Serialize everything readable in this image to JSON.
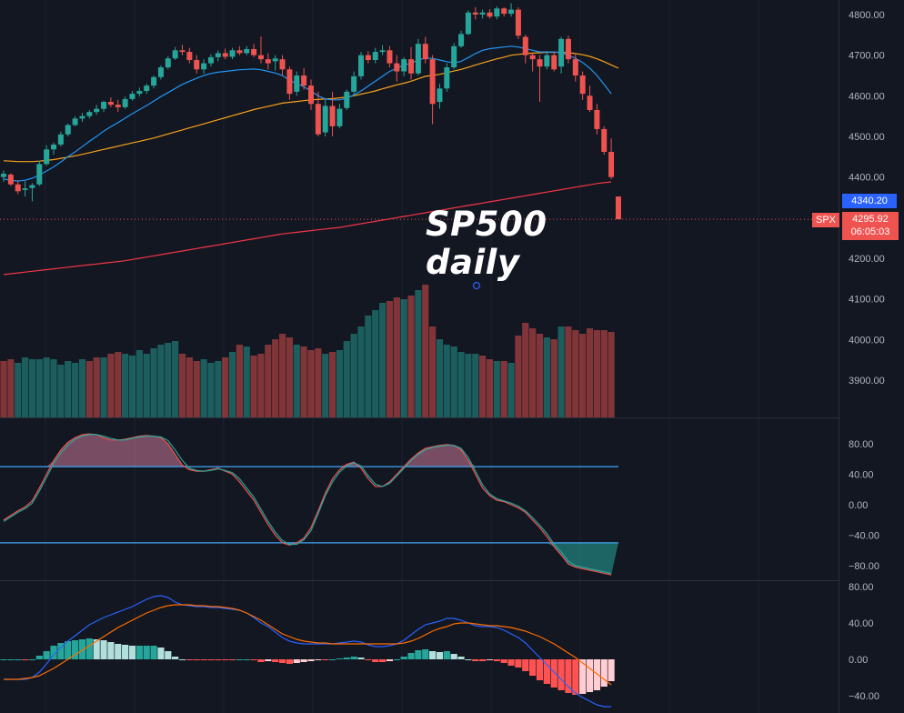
{
  "annotation": {
    "line1": "SP500",
    "line2": "daily"
  },
  "price_axis": {
    "ticks": [
      "4800.00",
      "4700.00",
      "4600.00",
      "4500.00",
      "4400.00",
      "4300.00",
      "4200.00",
      "4100.00",
      "4000.00",
      "3900.00"
    ]
  },
  "price_tags": {
    "ma_value": "4340.20",
    "symbol": "SPX",
    "last_price": "4295.92",
    "countdown": "06:05:03"
  },
  "stoch_axis": {
    "ticks": [
      "80.00",
      "40.00",
      "0.00",
      "−40.00",
      "−80.00"
    ],
    "levels": [
      50,
      -50
    ]
  },
  "macd_axis": {
    "ticks": [
      "80.00",
      "40.00",
      "0.00",
      "−40.00"
    ]
  },
  "colors": {
    "up": "#26a69a",
    "down": "#ef5350",
    "ma_fast": "#2196f3",
    "ma_mid": "#f7a21b",
    "ma_slow": "#f23645",
    "level_line": "#42a5f5"
  },
  "chart_data": [
    {
      "type": "candlestick",
      "title": "",
      "ylim": [
        4150,
        4830
      ],
      "ohlc": [
        [
          4400,
          4416,
          4388,
          4408
        ],
        [
          4406,
          4409,
          4378,
          4382
        ],
        [
          4382,
          4392,
          4358,
          4365
        ],
        [
          4368,
          4390,
          4352,
          4372
        ],
        [
          4373,
          4385,
          4340,
          4380
        ],
        [
          4382,
          4440,
          4378,
          4432
        ],
        [
          4432,
          4478,
          4428,
          4468
        ],
        [
          4468,
          4485,
          4455,
          4480
        ],
        [
          4480,
          4512,
          4475,
          4505
        ],
        [
          4505,
          4532,
          4500,
          4528
        ],
        [
          4528,
          4550,
          4525,
          4544
        ],
        [
          4544,
          4558,
          4536,
          4550
        ],
        [
          4550,
          4565,
          4544,
          4560
        ],
        [
          4560,
          4578,
          4553,
          4568
        ],
        [
          4568,
          4588,
          4560,
          4585
        ],
        [
          4585,
          4596,
          4572,
          4578
        ],
        [
          4578,
          4590,
          4560,
          4572
        ],
        [
          4572,
          4598,
          4568,
          4592
        ],
        [
          4592,
          4612,
          4588,
          4605
        ],
        [
          4605,
          4620,
          4598,
          4612
        ],
        [
          4612,
          4630,
          4605,
          4625
        ],
        [
          4625,
          4650,
          4618,
          4646
        ],
        [
          4646,
          4675,
          4640,
          4670
        ],
        [
          4670,
          4698,
          4665,
          4692
        ],
        [
          4692,
          4720,
          4688,
          4712
        ],
        [
          4712,
          4725,
          4700,
          4708
        ],
        [
          4708,
          4718,
          4680,
          4688
        ],
        [
          4688,
          4700,
          4655,
          4665
        ],
        [
          4665,
          4690,
          4655,
          4680
        ],
        [
          4680,
          4702,
          4672,
          4695
        ],
        [
          4695,
          4712,
          4685,
          4705
        ],
        [
          4705,
          4716,
          4690,
          4696
        ],
        [
          4696,
          4718,
          4690,
          4712
        ],
        [
          4712,
          4722,
          4700,
          4705
        ],
        [
          4705,
          4722,
          4700,
          4715
        ],
        [
          4715,
          4728,
          4695,
          4700
        ],
        [
          4700,
          4746,
          4680,
          4690
        ],
        [
          4690,
          4705,
          4665,
          4680
        ],
        [
          4685,
          4700,
          4662,
          4692
        ],
        [
          4690,
          4700,
          4650,
          4665
        ],
        [
          4665,
          4672,
          4590,
          4605
        ],
        [
          4610,
          4660,
          4600,
          4650
        ],
        [
          4650,
          4668,
          4615,
          4625
        ],
        [
          4625,
          4640,
          4565,
          4580
        ],
        [
          4580,
          4610,
          4500,
          4505
        ],
        [
          4510,
          4590,
          4500,
          4575
        ],
        [
          4575,
          4610,
          4500,
          4525
        ],
        [
          4525,
          4580,
          4520,
          4568
        ],
        [
          4570,
          4615,
          4565,
          4610
        ],
        [
          4610,
          4660,
          4600,
          4648
        ],
        [
          4648,
          4708,
          4640,
          4700
        ],
        [
          4700,
          4710,
          4680,
          4688
        ],
        [
          4688,
          4718,
          4680,
          4708
        ],
        [
          4708,
          4725,
          4700,
          4712
        ],
        [
          4712,
          4722,
          4670,
          4680
        ],
        [
          4680,
          4700,
          4635,
          4660
        ],
        [
          4660,
          4695,
          4648,
          4690
        ],
        [
          4690,
          4720,
          4640,
          4655
        ],
        [
          4655,
          4740,
          4650,
          4728
        ],
        [
          4728,
          4745,
          4680,
          4690
        ],
        [
          4690,
          4700,
          4530,
          4580
        ],
        [
          4585,
          4630,
          4568,
          4618
        ],
        [
          4618,
          4680,
          4610,
          4670
        ],
        [
          4670,
          4730,
          4665,
          4722
        ],
        [
          4722,
          4760,
          4718,
          4752
        ],
        [
          4752,
          4810,
          4750,
          4805
        ],
        [
          4805,
          4818,
          4788,
          4800
        ],
        [
          4800,
          4812,
          4790,
          4805
        ],
        [
          4805,
          4813,
          4790,
          4795
        ],
        [
          4795,
          4820,
          4788,
          4815
        ],
        [
          4815,
          4818,
          4795,
          4802
        ],
        [
          4802,
          4828,
          4795,
          4812
        ],
        [
          4812,
          4818,
          4740,
          4748
        ],
        [
          4745,
          4750,
          4680,
          4700
        ],
        [
          4700,
          4705,
          4660,
          4690
        ],
        [
          4690,
          4700,
          4585,
          4672
        ],
        [
          4672,
          4710,
          4665,
          4700
        ],
        [
          4700,
          4708,
          4660,
          4665
        ],
        [
          4672,
          4745,
          4655,
          4740
        ],
        [
          4740,
          4748,
          4680,
          4690
        ],
        [
          4690,
          4705,
          4635,
          4650
        ],
        [
          4650,
          4660,
          4590,
          4605
        ],
        [
          4600,
          4625,
          4560,
          4565
        ],
        [
          4565,
          4580,
          4505,
          4518
        ],
        [
          4518,
          4525,
          4455,
          4462
        ],
        [
          4462,
          4495,
          4395,
          4400
        ],
        [
          4352,
          4352,
          4296,
          4296
        ]
      ],
      "ma_fast": [
        4395,
        4392,
        4390,
        4392,
        4397,
        4405,
        4415,
        4425,
        4437,
        4450,
        4462,
        4475,
        4488,
        4500,
        4513,
        4524,
        4534,
        4545,
        4556,
        4566,
        4576,
        4587,
        4598,
        4608,
        4618,
        4628,
        4636,
        4643,
        4650,
        4655,
        4658,
        4660,
        4662,
        4664,
        4665,
        4666,
        4664,
        4660,
        4656,
        4650,
        4638,
        4630,
        4622,
        4612,
        4600,
        4592,
        4590,
        4590,
        4594,
        4602,
        4612,
        4624,
        4636,
        4648,
        4660,
        4668,
        4676,
        4680,
        4688,
        4693,
        4692,
        4688,
        4684,
        4681,
        4685,
        4694,
        4704,
        4712,
        4716,
        4718,
        4720,
        4722,
        4720,
        4716,
        4712,
        4708,
        4708,
        4708,
        4706,
        4700,
        4692,
        4682,
        4668,
        4650,
        4628,
        4605
      ],
      "ma_mid": [
        4440,
        4439,
        4438,
        4438,
        4438,
        4439,
        4441,
        4443,
        4446,
        4449,
        4452,
        4456,
        4460,
        4464,
        4468,
        4472,
        4476,
        4480,
        4484,
        4488,
        4492,
        4496,
        4501,
        4506,
        4511,
        4516,
        4521,
        4526,
        4531,
        4536,
        4541,
        4546,
        4551,
        4556,
        4561,
        4566,
        4570,
        4574,
        4578,
        4582,
        4584,
        4586,
        4588,
        4590,
        4591,
        4592,
        4593,
        4595,
        4597,
        4600,
        4604,
        4608,
        4612,
        4617,
        4622,
        4627,
        4631,
        4636,
        4642,
        4648,
        4650,
        4653,
        4657,
        4661,
        4665,
        4670,
        4676,
        4681,
        4686,
        4691,
        4695,
        4700,
        4702,
        4704,
        4705,
        4706,
        4707,
        4707,
        4707,
        4706,
        4704,
        4701,
        4697,
        4691,
        4684,
        4676,
        4668
      ],
      "ma_slow": [
        4160,
        4162,
        4164,
        4166,
        4168,
        4170,
        4172,
        4174,
        4176,
        4178,
        4180,
        4182,
        4184,
        4186,
        4188,
        4190,
        4192,
        4194,
        4197,
        4200,
        4203,
        4206,
        4209,
        4212,
        4215,
        4218,
        4221,
        4224,
        4227,
        4230,
        4233,
        4236,
        4239,
        4242,
        4245,
        4248,
        4251,
        4254,
        4257,
        4260,
        4262,
        4264,
        4266,
        4268,
        4270,
        4272,
        4274,
        4276,
        4279,
        4282,
        4285,
        4288,
        4291,
        4294,
        4297,
        4300,
        4303,
        4306,
        4309,
        4312,
        4315,
        4318,
        4321,
        4324,
        4327,
        4330,
        4333,
        4336,
        4339,
        4342,
        4345,
        4348,
        4351,
        4354,
        4357,
        4360,
        4363,
        4366,
        4369,
        4372,
        4375,
        4378,
        4381,
        4384,
        4386,
        4388
      ],
      "last_close": 4295.92
    },
    {
      "type": "bar",
      "title": "",
      "series_name": "volume",
      "values": [
        62,
        64,
        60,
        66,
        64,
        64,
        66,
        64,
        58,
        62,
        60,
        64,
        62,
        66,
        66,
        70,
        72,
        70,
        68,
        74,
        70,
        76,
        80,
        82,
        84,
        70,
        66,
        62,
        64,
        60,
        62,
        66,
        72,
        80,
        78,
        68,
        70,
        80,
        86,
        92,
        88,
        80,
        78,
        74,
        76,
        70,
        72,
        74,
        84,
        92,
        100,
        112,
        118,
        126,
        128,
        132,
        130,
        134,
        140,
        146,
        100,
        86,
        80,
        78,
        72,
        70,
        70,
        68,
        64,
        62,
        62,
        60,
        90,
        104,
        98,
        92,
        88,
        86,
        100,
        100,
        96,
        92,
        98,
        96,
        96,
        94
      ],
      "directions": [
        0,
        0,
        1,
        1,
        1,
        1,
        1,
        1,
        1,
        1,
        1,
        1,
        0,
        0,
        1,
        0,
        0,
        1,
        1,
        1,
        1,
        1,
        1,
        1,
        1,
        0,
        0,
        0,
        1,
        1,
        1,
        0,
        1,
        0,
        1,
        0,
        0,
        0,
        0,
        0,
        0,
        1,
        0,
        0,
        0,
        1,
        0,
        1,
        1,
        1,
        1,
        1,
        1,
        1,
        0,
        0,
        1,
        0,
        1,
        0,
        0,
        1,
        1,
        1,
        1,
        1,
        1,
        0,
        0,
        1,
        0,
        1,
        0,
        0,
        0,
        0,
        1,
        0,
        1,
        0,
        0,
        0,
        0,
        0,
        0,
        0
      ],
      "ylim": [
        0,
        160
      ]
    },
    {
      "type": "line",
      "title": "",
      "series_name": "stochastic",
      "ylim": [
        -100,
        100
      ],
      "k": [
        -20,
        -14,
        -8,
        -3,
        5,
        22,
        40,
        58,
        72,
        82,
        88,
        92,
        93,
        92,
        88,
        85,
        85,
        86,
        88,
        90,
        91,
        90,
        88,
        80,
        66,
        52,
        46,
        44,
        44,
        46,
        48,
        44,
        40,
        30,
        18,
        6,
        -10,
        -26,
        -40,
        -50,
        -53,
        -50,
        -44,
        -30,
        -8,
        15,
        34,
        46,
        53,
        56,
        48,
        34,
        24,
        24,
        30,
        40,
        50,
        60,
        68,
        74,
        76,
        78,
        79,
        78,
        72,
        58,
        40,
        22,
        12,
        6,
        4,
        0,
        -4,
        -10,
        -20,
        -30,
        -42,
        -55,
        -66,
        -78,
        -82,
        -84,
        -86,
        -88,
        -90,
        -92
      ],
      "d": [
        -22,
        -16,
        -10,
        -5,
        2,
        18,
        36,
        54,
        68,
        78,
        86,
        90,
        92,
        92,
        90,
        87,
        85,
        85,
        87,
        89,
        90,
        90,
        89,
        84,
        72,
        58,
        48,
        45,
        44,
        45,
        47,
        45,
        42,
        34,
        22,
        10,
        -6,
        -22,
        -36,
        -47,
        -52,
        -52,
        -46,
        -34,
        -12,
        12,
        30,
        43,
        51,
        55,
        51,
        38,
        27,
        24,
        28,
        38,
        48,
        58,
        66,
        72,
        75,
        77,
        78,
        78,
        74,
        62,
        44,
        26,
        14,
        8,
        5,
        2,
        -2,
        -8,
        -17,
        -27,
        -38,
        -52,
        -62,
        -74,
        -80,
        -82,
        -84,
        -86,
        -88,
        -90
      ]
    },
    {
      "type": "line",
      "title": "",
      "series_name": "macd",
      "ylim": [
        -50,
        82
      ],
      "macd": [
        -22,
        -22,
        -22,
        -22,
        -20,
        -14,
        -5,
        5,
        13,
        20,
        26,
        32,
        38,
        42,
        46,
        49,
        52,
        55,
        58,
        62,
        66,
        69,
        70,
        68,
        63,
        60,
        59,
        58,
        58,
        57,
        57,
        56,
        55,
        54,
        51,
        46,
        40,
        36,
        30,
        24,
        20,
        18,
        17,
        17,
        17,
        17,
        17,
        18,
        19,
        20,
        19,
        16,
        14,
        14,
        15,
        17,
        21,
        27,
        33,
        38,
        40,
        42,
        45,
        45,
        43,
        40,
        37,
        36,
        36,
        35,
        32,
        28,
        24,
        18,
        10,
        2,
        -6,
        -14,
        -22,
        -30,
        -37,
        -42,
        -46,
        -50,
        -52,
        -52
      ],
      "signal": [
        -22,
        -22,
        -22,
        -21,
        -20,
        -18,
        -14,
        -10,
        -5,
        0,
        5,
        10,
        15,
        20,
        25,
        30,
        35,
        39,
        43,
        47,
        51,
        54,
        57,
        59,
        60,
        60,
        60,
        59,
        59,
        58,
        58,
        57,
        56,
        54,
        51,
        47,
        43,
        38,
        33,
        28,
        25,
        22,
        20,
        19,
        18,
        18,
        17,
        17,
        17,
        17,
        17,
        17,
        17,
        17,
        17,
        17,
        18,
        20,
        23,
        27,
        31,
        34,
        36,
        39,
        40,
        40,
        39,
        38,
        37,
        37,
        36,
        35,
        33,
        31,
        28,
        25,
        21,
        17,
        12,
        7,
        2,
        -4,
        -10,
        -16,
        -22,
        -28
      ],
      "histogram": [
        0,
        0,
        0,
        -1,
        0,
        4,
        9,
        15,
        18,
        20,
        21,
        22,
        23,
        22,
        21,
        19,
        17,
        16,
        15,
        15,
        15,
        15,
        13,
        9,
        3,
        0,
        -1,
        -1,
        -1,
        -1,
        -1,
        -1,
        -1,
        0,
        0,
        -1,
        -3,
        -2,
        -3,
        -4,
        -5,
        -4,
        -3,
        -2,
        -1,
        -1,
        0,
        1,
        2,
        3,
        2,
        -1,
        -3,
        -3,
        -2,
        0,
        3,
        7,
        10,
        11,
        9,
        8,
        9,
        6,
        3,
        0,
        -2,
        -2,
        -1,
        -2,
        -4,
        -7,
        -9,
        -13,
        -18,
        -23,
        -27,
        -31,
        -34,
        -37,
        -39,
        -38,
        -36,
        -34,
        -30,
        -24
      ]
    }
  ]
}
